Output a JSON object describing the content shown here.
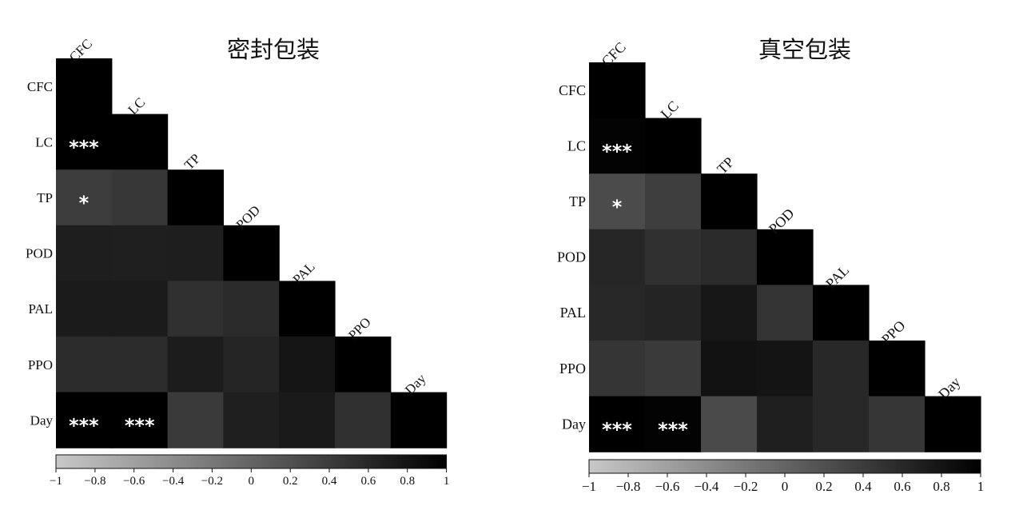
{
  "chart_data": [
    {
      "type": "heatmap",
      "title": "密封包装",
      "variables": [
        "CFC",
        "LC",
        "TP",
        "POD",
        "PAL",
        "PPO",
        "Day"
      ],
      "matrix": [
        [
          1,
          null,
          null,
          null,
          null,
          null,
          null
        ],
        [
          1,
          1,
          null,
          null,
          null,
          null,
          null
        ],
        [
          0.4,
          0.45,
          1,
          null,
          null,
          null,
          null
        ],
        [
          0.7,
          0.69,
          0.7,
          1,
          null,
          null,
          null
        ],
        [
          0.73,
          0.73,
          0.52,
          0.57,
          1,
          null,
          null
        ],
        [
          0.56,
          0.56,
          0.72,
          0.63,
          0.79,
          1,
          null
        ],
        [
          1,
          1,
          0.42,
          0.69,
          0.74,
          0.52,
          1
        ]
      ],
      "stars": [
        {
          "row": 1,
          "col": 0,
          "text": "***"
        },
        {
          "row": 2,
          "col": 0,
          "text": "*"
        },
        {
          "row": 6,
          "col": 0,
          "text": "***"
        },
        {
          "row": 6,
          "col": 1,
          "text": "***"
        }
      ],
      "colorbar": {
        "range": [
          -1,
          1
        ],
        "ticks": [
          "−1",
          "−0.8",
          "−0.6",
          "−0.4",
          "−0.2",
          "0",
          "0.2",
          "0.4",
          "0.6",
          "0.8",
          "1"
        ]
      }
    },
    {
      "type": "heatmap",
      "title": "真空包装",
      "variables": [
        "CFC",
        "LC",
        "TP",
        "POD",
        "PAL",
        "PPO",
        "Day"
      ],
      "matrix": [
        [
          1,
          null,
          null,
          null,
          null,
          null,
          null
        ],
        [
          0.97,
          1,
          null,
          null,
          null,
          null,
          null
        ],
        [
          0.25,
          0.38,
          1,
          null,
          null,
          null,
          null
        ],
        [
          0.62,
          0.52,
          0.58,
          1,
          null,
          null,
          null
        ],
        [
          0.6,
          0.64,
          0.77,
          0.49,
          1,
          null,
          null
        ],
        [
          0.47,
          0.42,
          0.82,
          0.8,
          0.6,
          1,
          null
        ],
        [
          1,
          0.97,
          0.26,
          0.69,
          0.6,
          0.46,
          1
        ]
      ],
      "stars": [
        {
          "row": 1,
          "col": 0,
          "text": "***"
        },
        {
          "row": 2,
          "col": 0,
          "text": "*"
        },
        {
          "row": 6,
          "col": 0,
          "text": "***"
        },
        {
          "row": 6,
          "col": 1,
          "text": "***"
        }
      ],
      "colorbar": {
        "range": [
          -1,
          1
        ],
        "ticks": [
          "−1",
          "−0.8",
          "−0.6",
          "−0.4",
          "−0.2",
          "0",
          "0.2",
          "0.4",
          "0.6",
          "0.8",
          "1"
        ]
      }
    }
  ]
}
